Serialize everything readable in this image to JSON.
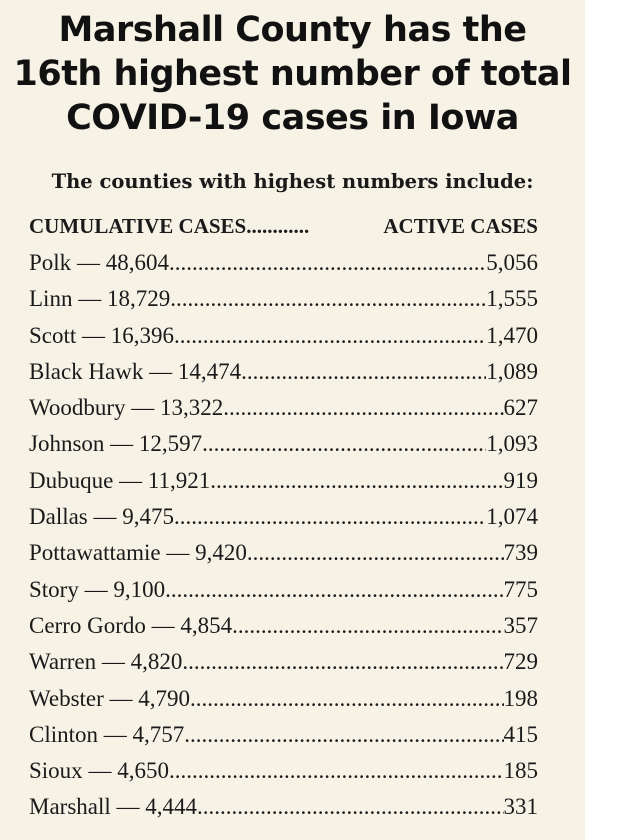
{
  "title_lines": [
    "Marshall County has the",
    "16th highest number of total",
    "COVID-19 cases in Iowa"
  ],
  "subtitle": "The counties with highest numbers include:",
  "columns": {
    "cumulative": "CUMULATIVE CASES",
    "active": "ACTIVE CASES"
  },
  "rows": [
    {
      "county": "Polk",
      "cumulative": "48,604",
      "active": "5,056"
    },
    {
      "county": "Linn",
      "cumulative": "18,729",
      "active": "1,555"
    },
    {
      "county": "Scott",
      "cumulative": "16,396",
      "active": "1,470"
    },
    {
      "county": "Black Hawk",
      "cumulative": "14,474",
      "active": "1,089"
    },
    {
      "county": "Woodbury",
      "cumulative": "13,322",
      "active": "627"
    },
    {
      "county": "Johnson",
      "cumulative": "12,597",
      "active": "1,093"
    },
    {
      "county": "Dubuque",
      "cumulative": "11,921",
      "active": "919"
    },
    {
      "county": "Dallas",
      "cumulative": "9,475",
      "active": "1,074"
    },
    {
      "county": "Pottawattamie",
      "cumulative": "9,420",
      "active": "739"
    },
    {
      "county": "Story",
      "cumulative": "9,100",
      "active": "775"
    },
    {
      "county": "Cerro Gordo",
      "cumulative": "4,854",
      "active": "357"
    },
    {
      "county": "Warren",
      "cumulative": "4,820",
      "active": "729"
    },
    {
      "county": "Webster",
      "cumulative": "4,790",
      "active": "198"
    },
    {
      "county": "Clinton",
      "cumulative": "4,757",
      "active": "415"
    },
    {
      "county": "Sioux",
      "cumulative": "4,650",
      "active": "185"
    },
    {
      "county": "Marshall",
      "cumulative": "4,444",
      "active": "331"
    }
  ]
}
